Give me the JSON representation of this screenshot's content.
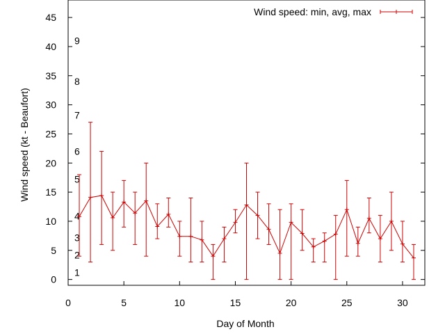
{
  "chart_data": {
    "type": "line",
    "title": "",
    "xlabel": "Day of Month",
    "ylabel": "Wind speed (kt - Beaufort)",
    "xlim": [
      0,
      32
    ],
    "ylim": [
      -1,
      48
    ],
    "xticks": [
      0,
      5,
      10,
      15,
      20,
      25,
      30
    ],
    "yticks": [
      0,
      5,
      10,
      15,
      20,
      25,
      30,
      35,
      40,
      45
    ],
    "beaufort_labels": [
      {
        "label": "1",
        "y": 1.2
      },
      {
        "label": "2",
        "y": 4.2
      },
      {
        "label": "3",
        "y": 7.2
      },
      {
        "label": "4",
        "y": 10.9
      },
      {
        "label": "5",
        "y": 17.2
      },
      {
        "label": "6",
        "y": 22.0
      },
      {
        "label": "7",
        "y": 28.2
      },
      {
        "label": "8",
        "y": 34.0
      },
      {
        "label": "9",
        "y": 41.0
      }
    ],
    "legend": {
      "label": "Wind speed: min, avg, max",
      "placement": "top-right"
    },
    "grid": false,
    "series": [
      {
        "name": "Wind speed: min, avg, max",
        "color": "#cc0000",
        "x": [
          1,
          2,
          3,
          4,
          5,
          6,
          7,
          8,
          9,
          10,
          11,
          12,
          13,
          14,
          15,
          16,
          17,
          18,
          19,
          20,
          21,
          22,
          23,
          24,
          25,
          26,
          27,
          28,
          29,
          30,
          31
        ],
        "avg": [
          10.8,
          14.1,
          14.4,
          10.6,
          13.3,
          11.4,
          13.5,
          9.1,
          11.2,
          7.4,
          7.4,
          6.8,
          4.0,
          7.0,
          9.8,
          12.8,
          11.0,
          8.6,
          4.5,
          9.8,
          7.9,
          5.6,
          6.6,
          7.8,
          12.0,
          6.2,
          10.5,
          7.0,
          10.0,
          6.1,
          3.7
        ],
        "min": [
          4.0,
          3.0,
          6.0,
          5.0,
          9.0,
          6.0,
          4.0,
          7.0,
          9.0,
          4.0,
          3.0,
          3.0,
          0.0,
          3.0,
          8.0,
          0.0,
          7.0,
          6.0,
          0.0,
          0.0,
          5.0,
          3.0,
          3.0,
          0.0,
          4.0,
          4.0,
          8.0,
          3.0,
          5.0,
          3.0,
          0.0
        ],
        "max": [
          18.0,
          27.0,
          22.0,
          15.0,
          17.0,
          15.0,
          20.0,
          13.0,
          14.0,
          10.0,
          14.0,
          10.0,
          6.0,
          9.0,
          12.0,
          20.0,
          15.0,
          13.0,
          12.0,
          13.0,
          12.0,
          7.0,
          8.0,
          11.0,
          17.0,
          9.0,
          14.0,
          11.0,
          15.0,
          10.0,
          6.0
        ]
      }
    ]
  }
}
